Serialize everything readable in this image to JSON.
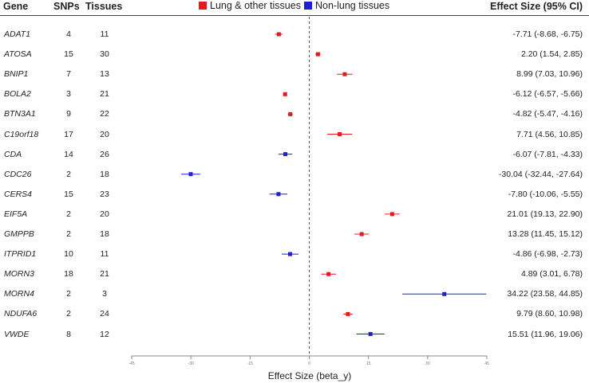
{
  "headers": {
    "gene": "Gene",
    "snps": "SNPs",
    "tissues": "Tissues",
    "effect": "Effect Size (95% CI)"
  },
  "legend": [
    {
      "label": "Lung & other tissues",
      "color": "#e41a1c"
    },
    {
      "label": "Non-lung tissues",
      "color": "#1f1fd6"
    }
  ],
  "chart_data": {
    "type": "scatter",
    "subtype": "forest-plot",
    "xlabel": "Effect Size (beta_y)",
    "xlim": [
      -45,
      45
    ],
    "xticks": [
      "-45",
      "-30",
      "-15",
      "0",
      "15",
      "30",
      "45"
    ],
    "reference_line_x": 0,
    "rows": [
      {
        "gene": "ADAT1",
        "snps": "4",
        "tissues": "11",
        "beta": -7.71,
        "lo": -8.68,
        "hi": -6.75,
        "group": "lung",
        "effect_text": "-7.71 (-8.68, -6.75)"
      },
      {
        "gene": "ATOSA",
        "snps": "15",
        "tissues": "30",
        "beta": 2.2,
        "lo": 1.54,
        "hi": 2.85,
        "group": "lung",
        "effect_text": "2.20 (1.54, 2.85)"
      },
      {
        "gene": "BNIP1",
        "snps": "7",
        "tissues": "13",
        "beta": 8.99,
        "lo": 7.03,
        "hi": 10.96,
        "group": "lung",
        "effect_text": "8.99 (7.03, 10.96)"
      },
      {
        "gene": "BOLA2",
        "snps": "3",
        "tissues": "21",
        "beta": -6.12,
        "lo": -6.57,
        "hi": -5.66,
        "group": "lung",
        "effect_text": "-6.12 (-6.57, -5.66)"
      },
      {
        "gene": "BTN3A1",
        "snps": "9",
        "tissues": "22",
        "beta": -4.82,
        "lo": -5.47,
        "hi": -4.16,
        "group": "lung",
        "effect_text": "-4.82 (-5.47, -4.16)"
      },
      {
        "gene": "C19orf18",
        "snps": "17",
        "tissues": "20",
        "beta": 7.71,
        "lo": 4.56,
        "hi": 10.85,
        "group": "lung",
        "effect_text": "7.71 (4.56, 10.85)"
      },
      {
        "gene": "CDA",
        "snps": "14",
        "tissues": "26",
        "beta": -6.07,
        "lo": -7.81,
        "hi": -4.33,
        "group": "nonlung",
        "effect_text": "-6.07 (-7.81, -4.33)"
      },
      {
        "gene": "CDC26",
        "snps": "2",
        "tissues": "18",
        "beta": -30.04,
        "lo": -32.44,
        "hi": -27.64,
        "group": "nonlung",
        "effect_text": "-30.04 (-32.44, -27.64)"
      },
      {
        "gene": "CERS4",
        "snps": "15",
        "tissues": "23",
        "beta": -7.8,
        "lo": -10.06,
        "hi": -5.55,
        "group": "nonlung",
        "effect_text": "-7.80 (-10.06, -5.55)"
      },
      {
        "gene": "EIF5A",
        "snps": "2",
        "tissues": "20",
        "beta": 21.01,
        "lo": 19.13,
        "hi": 22.9,
        "group": "lung",
        "effect_text": "21.01 (19.13, 22.90)"
      },
      {
        "gene": "GMPPB",
        "snps": "2",
        "tissues": "18",
        "beta": 13.28,
        "lo": 11.45,
        "hi": 15.12,
        "group": "lung",
        "effect_text": "13.28 (11.45, 15.12)"
      },
      {
        "gene": "ITPRID1",
        "snps": "10",
        "tissues": "11",
        "beta": -4.86,
        "lo": -6.98,
        "hi": -2.73,
        "group": "nonlung",
        "effect_text": "-4.86 (-6.98, -2.73)"
      },
      {
        "gene": "MORN3",
        "snps": "18",
        "tissues": "21",
        "beta": 4.89,
        "lo": 3.01,
        "hi": 6.78,
        "group": "lung",
        "effect_text": "4.89 (3.01, 6.78)"
      },
      {
        "gene": "MORN4",
        "snps": "2",
        "tissues": "3",
        "beta": 34.22,
        "lo": 23.58,
        "hi": 44.85,
        "group": "nonlung",
        "effect_text": "34.22 (23.58, 44.85)"
      },
      {
        "gene": "NDUFA6",
        "snps": "2",
        "tissues": "24",
        "beta": 9.79,
        "lo": 8.6,
        "hi": 10.98,
        "group": "lung",
        "effect_text": "9.79 (8.60, 10.98)"
      },
      {
        "gene": "VWDE",
        "snps": "8",
        "tissues": "12",
        "beta": 15.51,
        "lo": 11.96,
        "hi": 19.06,
        "group": "nonlung",
        "effect_text": "15.51 (11.96, 19.06)"
      }
    ],
    "colors": {
      "lung": "#e41a1c",
      "nonlung": "#1f1fd6",
      "refline": "#555555",
      "axis": "#888888"
    }
  }
}
